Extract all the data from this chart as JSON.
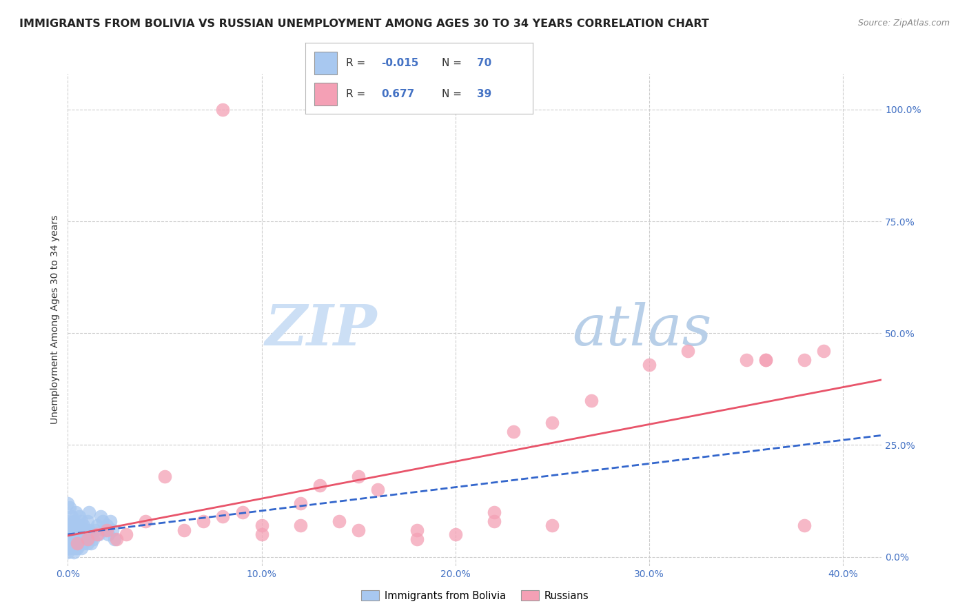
{
  "title": "IMMIGRANTS FROM BOLIVIA VS RUSSIAN UNEMPLOYMENT AMONG AGES 30 TO 34 YEARS CORRELATION CHART",
  "source": "Source: ZipAtlas.com",
  "xlim": [
    0.0,
    0.42
  ],
  "ylim": [
    -0.02,
    1.08
  ],
  "ylabel": "Unemployment Among Ages 30 to 34 years",
  "legend_label1": "Immigrants from Bolivia",
  "legend_label2": "Russians",
  "r1": "-0.015",
  "n1": "70",
  "r2": "0.677",
  "n2": "39",
  "bolivia_color": "#a8c8f0",
  "russian_color": "#f4a0b5",
  "bolivia_edge_color": "#7aaad8",
  "russian_edge_color": "#e8546a",
  "bolivia_line_color": "#3366cc",
  "russian_line_color": "#e8546a",
  "bolivia_x": [
    0.0,
    0.0,
    0.0,
    0.0,
    0.0,
    0.0,
    0.0,
    0.0,
    0.001,
    0.001,
    0.001,
    0.001,
    0.001,
    0.001,
    0.002,
    0.002,
    0.002,
    0.002,
    0.003,
    0.003,
    0.003,
    0.003,
    0.004,
    0.004,
    0.004,
    0.005,
    0.005,
    0.005,
    0.006,
    0.006,
    0.006,
    0.007,
    0.007,
    0.007,
    0.008,
    0.008,
    0.009,
    0.009,
    0.01,
    0.01,
    0.011,
    0.011,
    0.012,
    0.012,
    0.013,
    0.014,
    0.015,
    0.016,
    0.017,
    0.018,
    0.019,
    0.02,
    0.021,
    0.022,
    0.023,
    0.024,
    0.0,
    0.001,
    0.002,
    0.003,
    0.004,
    0.005,
    0.006,
    0.007,
    0.008,
    0.009,
    0.01,
    0.011,
    0.003,
    0.004
  ],
  "bolivia_y": [
    0.03,
    0.05,
    0.07,
    0.04,
    0.06,
    0.02,
    0.08,
    0.01,
    0.04,
    0.06,
    0.03,
    0.07,
    0.05,
    0.02,
    0.05,
    0.03,
    0.07,
    0.04,
    0.04,
    0.06,
    0.02,
    0.03,
    0.05,
    0.03,
    0.07,
    0.04,
    0.06,
    0.02,
    0.05,
    0.03,
    0.07,
    0.04,
    0.06,
    0.02,
    0.05,
    0.03,
    0.04,
    0.06,
    0.05,
    0.03,
    0.06,
    0.04,
    0.05,
    0.03,
    0.04,
    0.06,
    0.07,
    0.05,
    0.09,
    0.08,
    0.06,
    0.07,
    0.05,
    0.08,
    0.06,
    0.04,
    0.12,
    0.11,
    0.09,
    0.08,
    0.1,
    0.07,
    0.09,
    0.08,
    0.07,
    0.06,
    0.08,
    0.1,
    0.01,
    0.02
  ],
  "russian_x": [
    0.005,
    0.01,
    0.015,
    0.02,
    0.025,
    0.03,
    0.04,
    0.05,
    0.06,
    0.07,
    0.08,
    0.09,
    0.1,
    0.12,
    0.13,
    0.14,
    0.15,
    0.16,
    0.18,
    0.2,
    0.22,
    0.23,
    0.25,
    0.27,
    0.3,
    0.32,
    0.35,
    0.36,
    0.38,
    0.39,
    0.08,
    0.1,
    0.12,
    0.15,
    0.18,
    0.22,
    0.25,
    0.36,
    0.38
  ],
  "russian_y": [
    0.03,
    0.04,
    0.05,
    0.06,
    0.04,
    0.05,
    0.08,
    0.18,
    0.06,
    0.08,
    0.09,
    0.1,
    0.07,
    0.12,
    0.16,
    0.08,
    0.18,
    0.15,
    0.06,
    0.05,
    0.1,
    0.28,
    0.3,
    0.35,
    0.43,
    0.46,
    0.44,
    0.44,
    0.44,
    0.46,
    1.0,
    0.05,
    0.07,
    0.06,
    0.04,
    0.08,
    0.07,
    0.44,
    0.07
  ],
  "watermark_zip": "ZIP",
  "watermark_atlas": "atlas",
  "watermark_color_zip": "#c8dff5",
  "watermark_color_atlas": "#b8d0e8",
  "background_color": "#ffffff",
  "grid_color": "#cccccc",
  "title_color": "#222222",
  "axis_label_color": "#333333",
  "tick_color": "#4472c4",
  "title_fontsize": 11.5,
  "source_fontsize": 9,
  "axis_label_fontsize": 10,
  "ytick_vals": [
    0.0,
    0.25,
    0.5,
    0.75,
    1.0
  ],
  "xtick_vals": [
    0.0,
    0.1,
    0.2,
    0.3,
    0.4
  ],
  "ytick_labels": [
    "0.0%",
    "25.0%",
    "50.0%",
    "75.0%",
    "100.0%"
  ],
  "xtick_labels": [
    "0.0%",
    "10.0%",
    "20.0%",
    "30.0%",
    "40.0%"
  ]
}
